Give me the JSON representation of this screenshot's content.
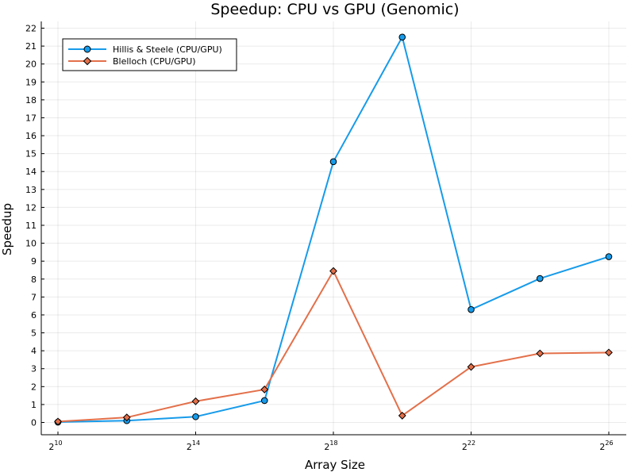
{
  "chart_data": {
    "type": "line",
    "title": "Speedup: CPU vs GPU (Genomic)",
    "xlabel": "Array Size",
    "ylabel": "Speedup",
    "x_scale": "log2",
    "x": [
      1024,
      4096,
      16384,
      65536,
      262144,
      1048576,
      4194304,
      16777216,
      67108864
    ],
    "x_tick_base": "2",
    "x_tick_exponents": [
      "10",
      "14",
      "18",
      "22",
      "26"
    ],
    "y_ticks": [
      "0",
      "1",
      "2",
      "3",
      "4",
      "5",
      "6",
      "7",
      "8",
      "9",
      "10",
      "11",
      "12",
      "13",
      "14",
      "15",
      "16",
      "17",
      "18",
      "19",
      "20",
      "21",
      "22"
    ],
    "ylim": [
      0,
      22
    ],
    "grid": true,
    "legend_position": "top-left",
    "series": [
      {
        "name": "Hillis & Steele (CPU/GPU)",
        "color": "#179bea",
        "marker": "circle",
        "values": [
          0.02,
          0.1,
          0.32,
          1.22,
          14.55,
          21.5,
          6.3,
          8.03,
          9.25
        ]
      },
      {
        "name": "Blelloch (CPU/GPU)",
        "color": "#e3704a",
        "marker": "diamond",
        "values": [
          0.05,
          0.28,
          1.18,
          1.84,
          8.45,
          0.38,
          3.1,
          3.85,
          3.9
        ]
      }
    ]
  }
}
